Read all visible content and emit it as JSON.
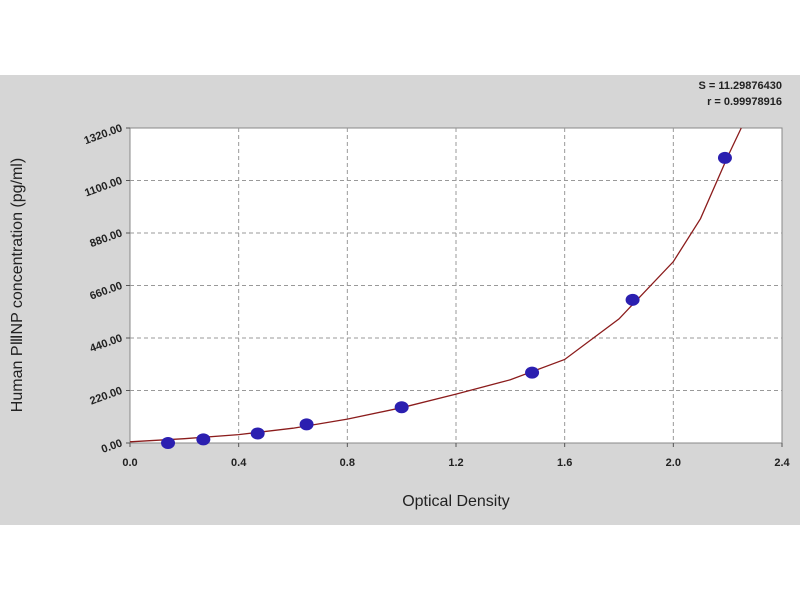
{
  "chart_data": {
    "type": "scatter",
    "annotations": [
      "S = 11.29876430",
      "r = 0.99978916"
    ],
    "x_label": "Optical Density",
    "y_label": "Human PⅢNP concentration (pg/ml)",
    "xlim": [
      0,
      2.4
    ],
    "ylim": [
      0,
      1320
    ],
    "xticks": [
      {
        "value": 0,
        "label": "0.0"
      },
      0.4,
      0.8,
      1.2,
      1.6,
      {
        "value": 2,
        "label": "2.0"
      },
      2.4
    ],
    "yticks": [
      {
        "value": 0,
        "label": "0.00"
      },
      {
        "value": 220,
        "label": "220.00"
      },
      {
        "value": 440,
        "label": "440.00"
      },
      {
        "value": 660,
        "label": "660.00"
      },
      {
        "value": 880,
        "label": "880.00"
      },
      {
        "value": 1100,
        "label": "1100.00"
      },
      {
        "value": 1320,
        "label": "1320.00"
      }
    ],
    "grid": true,
    "series": [
      {
        "kind": "points",
        "color": "#2b1fb0",
        "x": [
          0.14,
          0.27,
          0.47,
          0.65,
          1.0,
          1.48,
          1.85,
          2.19
        ],
        "values": [
          0,
          15,
          40,
          78,
          150,
          295,
          600,
          1195
        ]
      },
      {
        "kind": "curve",
        "color": "#8b1c1c",
        "x": [
          0,
          0.2,
          0.4,
          0.6,
          0.8,
          1.0,
          1.2,
          1.4,
          1.6,
          1.8,
          2.0,
          2.1,
          2.2,
          2.25
        ],
        "values": [
          5,
          18,
          35,
          62,
          100,
          148,
          205,
          265,
          350,
          520,
          760,
          940,
          1200,
          1320
        ]
      }
    ]
  }
}
